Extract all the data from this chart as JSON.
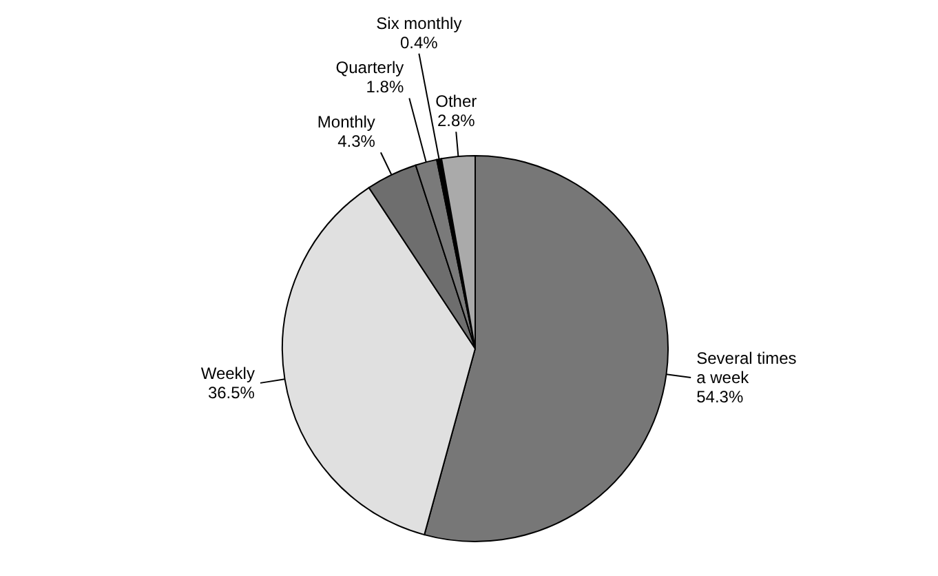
{
  "chart_data": {
    "type": "pie",
    "categories": [
      "Several times a week",
      "Weekly",
      "Monthly",
      "Quarterly",
      "Six monthly",
      "Other"
    ],
    "values": [
      54.3,
      36.5,
      4.3,
      1.8,
      0.4,
      2.8
    ],
    "value_labels": [
      "54.3%",
      "36.5%",
      "4.3%",
      "1.8%",
      "0.4%",
      "2.8%"
    ],
    "colors": [
      "#777777",
      "#e0e0e0",
      "#6e6e6e",
      "#7a7a7a",
      "#000000",
      "#aaaaaa"
    ],
    "legend": false
  }
}
